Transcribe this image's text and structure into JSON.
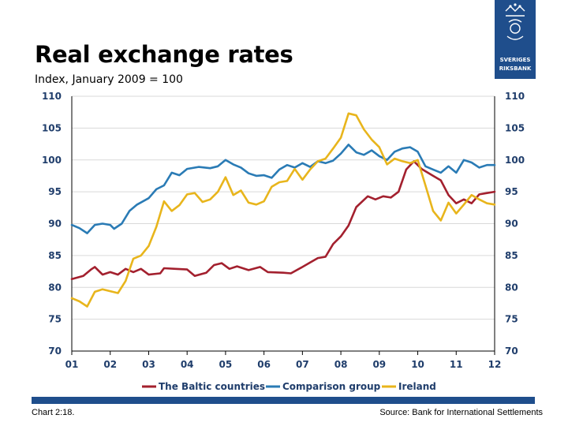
{
  "header": {
    "title": "Real exchange rates",
    "subtitle": "Index, January 2009 = 100",
    "logo_line1": "SVERIGES",
    "logo_line2": "RIKSBANK"
  },
  "footer": {
    "chart_number": "Chart 2:18.",
    "source": "Source: Bank for International Settlements"
  },
  "colors": {
    "baltic": "#a3202e",
    "comparison": "#2a7bb5",
    "ireland": "#e8b51c",
    "brand": "#1f4e8c",
    "tick": "#1f3d6b"
  },
  "chart_data": {
    "type": "line",
    "ylim": [
      70,
      110
    ],
    "yticks": [
      70,
      75,
      80,
      85,
      90,
      95,
      100,
      105,
      110
    ],
    "xlim": [
      2001,
      2012
    ],
    "xticks": [
      "01",
      "02",
      "03",
      "04",
      "05",
      "06",
      "07",
      "08",
      "09",
      "10",
      "11",
      "12"
    ],
    "right_axis": true,
    "grid": "horizontal",
    "legend_position": "bottom",
    "series": [
      {
        "name": "The Baltic countries",
        "color": "#a3202e",
        "points": [
          [
            2001.0,
            81.3
          ],
          [
            2001.3,
            81.8
          ],
          [
            2001.5,
            82.8
          ],
          [
            2001.6,
            83.2
          ],
          [
            2001.8,
            82.0
          ],
          [
            2002.0,
            82.4
          ],
          [
            2002.2,
            82.0
          ],
          [
            2002.4,
            82.9
          ],
          [
            2002.6,
            82.4
          ],
          [
            2002.8,
            82.9
          ],
          [
            2003.0,
            82.0
          ],
          [
            2003.3,
            82.2
          ],
          [
            2003.4,
            83.0
          ],
          [
            2003.7,
            82.9
          ],
          [
            2004.0,
            82.8
          ],
          [
            2004.2,
            81.8
          ],
          [
            2004.5,
            82.3
          ],
          [
            2004.7,
            83.5
          ],
          [
            2004.9,
            83.8
          ],
          [
            2005.1,
            82.9
          ],
          [
            2005.3,
            83.3
          ],
          [
            2005.6,
            82.7
          ],
          [
            2005.9,
            83.2
          ],
          [
            2006.1,
            82.4
          ],
          [
            2006.5,
            82.3
          ],
          [
            2006.7,
            82.2
          ],
          [
            2007.0,
            83.2
          ],
          [
            2007.2,
            83.9
          ],
          [
            2007.4,
            84.6
          ],
          [
            2007.6,
            84.8
          ],
          [
            2007.8,
            86.8
          ],
          [
            2008.0,
            88.0
          ],
          [
            2008.2,
            89.7
          ],
          [
            2008.4,
            92.6
          ],
          [
            2008.7,
            94.3
          ],
          [
            2008.9,
            93.8
          ],
          [
            2009.1,
            94.3
          ],
          [
            2009.3,
            94.1
          ],
          [
            2009.5,
            95.0
          ],
          [
            2009.7,
            98.5
          ],
          [
            2009.9,
            99.8
          ],
          [
            2010.1,
            98.6
          ],
          [
            2010.4,
            97.5
          ],
          [
            2010.6,
            96.8
          ],
          [
            2010.8,
            94.5
          ],
          [
            2011.0,
            93.2
          ],
          [
            2011.2,
            93.8
          ],
          [
            2011.4,
            93.2
          ],
          [
            2011.6,
            94.6
          ],
          [
            2011.8,
            94.8
          ],
          [
            2012.0,
            95.0
          ]
        ]
      },
      {
        "name": "Comparison group",
        "color": "#2a7bb5",
        "points": [
          [
            2001.0,
            89.8
          ],
          [
            2001.2,
            89.3
          ],
          [
            2001.4,
            88.5
          ],
          [
            2001.6,
            89.8
          ],
          [
            2001.8,
            90.0
          ],
          [
            2002.0,
            89.8
          ],
          [
            2002.1,
            89.2
          ],
          [
            2002.3,
            90.0
          ],
          [
            2002.5,
            92.0
          ],
          [
            2002.7,
            93.0
          ],
          [
            2003.0,
            94.0
          ],
          [
            2003.2,
            95.4
          ],
          [
            2003.4,
            96.0
          ],
          [
            2003.6,
            98.0
          ],
          [
            2003.8,
            97.6
          ],
          [
            2004.0,
            98.6
          ],
          [
            2004.3,
            98.9
          ],
          [
            2004.6,
            98.7
          ],
          [
            2004.8,
            99.0
          ],
          [
            2005.0,
            100.0
          ],
          [
            2005.2,
            99.3
          ],
          [
            2005.4,
            98.8
          ],
          [
            2005.6,
            97.9
          ],
          [
            2005.8,
            97.5
          ],
          [
            2006.0,
            97.6
          ],
          [
            2006.2,
            97.2
          ],
          [
            2006.4,
            98.5
          ],
          [
            2006.6,
            99.2
          ],
          [
            2006.8,
            98.8
          ],
          [
            2007.0,
            99.5
          ],
          [
            2007.2,
            98.9
          ],
          [
            2007.4,
            99.8
          ],
          [
            2007.6,
            99.5
          ],
          [
            2007.8,
            99.9
          ],
          [
            2008.0,
            101.0
          ],
          [
            2008.2,
            102.4
          ],
          [
            2008.4,
            101.2
          ],
          [
            2008.6,
            100.8
          ],
          [
            2008.8,
            101.5
          ],
          [
            2009.0,
            100.6
          ],
          [
            2009.2,
            100.0
          ],
          [
            2009.4,
            101.3
          ],
          [
            2009.6,
            101.8
          ],
          [
            2009.8,
            102.0
          ],
          [
            2010.0,
            101.3
          ],
          [
            2010.2,
            99.0
          ],
          [
            2010.4,
            98.5
          ],
          [
            2010.6,
            98.0
          ],
          [
            2010.8,
            99.0
          ],
          [
            2011.0,
            98.0
          ],
          [
            2011.2,
            100.0
          ],
          [
            2011.4,
            99.6
          ],
          [
            2011.6,
            98.8
          ],
          [
            2011.8,
            99.2
          ],
          [
            2012.0,
            99.2
          ]
        ]
      },
      {
        "name": "Ireland",
        "color": "#e8b51c",
        "points": [
          [
            2001.0,
            78.3
          ],
          [
            2001.2,
            77.8
          ],
          [
            2001.4,
            77.0
          ],
          [
            2001.6,
            79.3
          ],
          [
            2001.8,
            79.7
          ],
          [
            2002.0,
            79.4
          ],
          [
            2002.2,
            79.1
          ],
          [
            2002.4,
            81.0
          ],
          [
            2002.6,
            84.5
          ],
          [
            2002.8,
            85.0
          ],
          [
            2003.0,
            86.5
          ],
          [
            2003.2,
            89.5
          ],
          [
            2003.4,
            93.5
          ],
          [
            2003.6,
            92.0
          ],
          [
            2003.8,
            92.9
          ],
          [
            2004.0,
            94.6
          ],
          [
            2004.2,
            94.8
          ],
          [
            2004.4,
            93.4
          ],
          [
            2004.6,
            93.8
          ],
          [
            2004.8,
            95.0
          ],
          [
            2005.0,
            97.3
          ],
          [
            2005.2,
            94.5
          ],
          [
            2005.4,
            95.2
          ],
          [
            2005.6,
            93.3
          ],
          [
            2005.8,
            93.0
          ],
          [
            2006.0,
            93.5
          ],
          [
            2006.2,
            95.8
          ],
          [
            2006.4,
            96.5
          ],
          [
            2006.6,
            96.7
          ],
          [
            2006.8,
            98.6
          ],
          [
            2007.0,
            96.9
          ],
          [
            2007.2,
            98.5
          ],
          [
            2007.4,
            99.8
          ],
          [
            2007.6,
            100.2
          ],
          [
            2007.8,
            101.8
          ],
          [
            2008.0,
            103.5
          ],
          [
            2008.2,
            107.3
          ],
          [
            2008.4,
            107.0
          ],
          [
            2008.6,
            104.8
          ],
          [
            2008.8,
            103.2
          ],
          [
            2009.0,
            102.0
          ],
          [
            2009.2,
            99.3
          ],
          [
            2009.4,
            100.2
          ],
          [
            2009.6,
            99.8
          ],
          [
            2009.8,
            99.5
          ],
          [
            2010.0,
            100.0
          ],
          [
            2010.2,
            96.0
          ],
          [
            2010.4,
            92.0
          ],
          [
            2010.6,
            90.5
          ],
          [
            2010.8,
            93.3
          ],
          [
            2011.0,
            91.6
          ],
          [
            2011.2,
            93.0
          ],
          [
            2011.4,
            94.5
          ],
          [
            2011.6,
            93.8
          ],
          [
            2011.8,
            93.2
          ],
          [
            2012.0,
            93.0
          ]
        ]
      }
    ]
  }
}
